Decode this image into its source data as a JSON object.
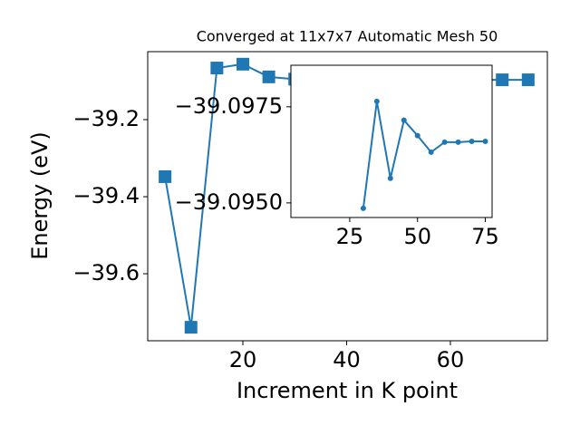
{
  "chart_data": [
    {
      "type": "line",
      "title": "Converged at 11x7x7 Automatic Mesh 50",
      "xlabel": "Increment in K point",
      "ylabel": "Energy (eV)",
      "x": [
        5,
        10,
        15,
        20,
        25,
        30,
        35,
        40,
        45,
        50,
        55,
        60,
        65,
        70,
        75
      ],
      "series": [
        {
          "name": "energy",
          "color": "#1f77b4",
          "marker": "square",
          "values": [
            -39.348,
            -39.739,
            -39.066,
            -39.056,
            -39.089,
            -39.0949,
            -39.0976,
            -39.0956,
            -39.0972,
            -39.0968,
            -39.0963,
            -39.0966,
            -39.0966,
            -39.0966,
            -39.0966
          ]
        }
      ],
      "xlim": [
        1.66,
        78.7
      ],
      "ylim": [
        -39.774,
        -39.0235
      ],
      "xticks": [
        20,
        40,
        60
      ],
      "yticks": [
        {
          "value": -39.2,
          "label": "−39.2"
        },
        {
          "value": -39.4,
          "label": "−39.4"
        },
        {
          "value": -39.6,
          "label": "−39.6"
        }
      ]
    },
    {
      "type": "line",
      "x": [
        30,
        35,
        40,
        45,
        50,
        55,
        60,
        65,
        70,
        75
      ],
      "series": [
        {
          "name": "inset",
          "color": "#1f77b4",
          "marker": "circle",
          "values": [
            -39.09486,
            -39.09764,
            -39.09564,
            -39.09715,
            -39.09675,
            -39.09632,
            -39.09658,
            -39.09658,
            -39.0966,
            -39.0966
          ]
        }
      ],
      "xlim": [
        3.3,
        77.5
      ],
      "ylim": [
        -39.09462,
        -39.09858
      ],
      "xticks": [
        25,
        50,
        75
      ],
      "yticks": [
        {
          "value": -39.0975,
          "label": "−39.0975"
        },
        {
          "value": -39.095,
          "label": "−39.0950"
        }
      ]
    }
  ]
}
